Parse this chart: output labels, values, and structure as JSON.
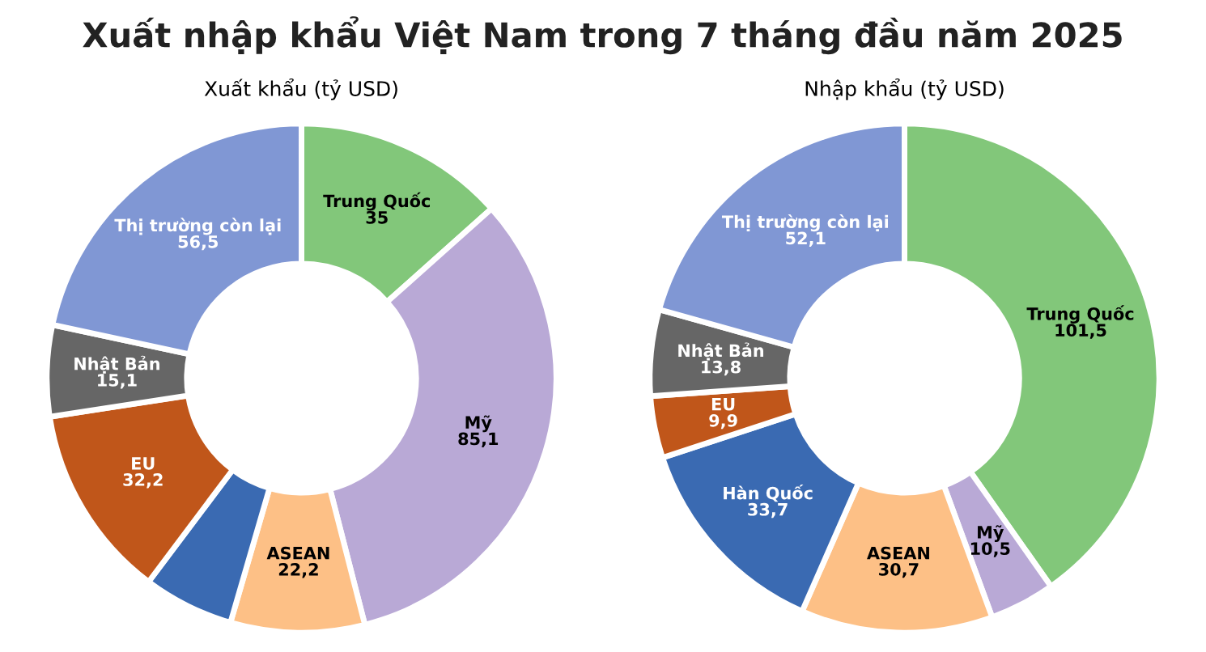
{
  "chart_data": [
    {
      "type": "donut",
      "title": "Xuất nhập khẩu Việt Nam trong 7 tháng đầu năm 2025",
      "subtitle": "Xuất khẩu (tỷ USD)",
      "categories": [
        "Trung Quốc",
        "Mỹ",
        "ASEAN",
        null,
        "EU",
        "Nhật Bản",
        "Thị trường còn lại"
      ],
      "values": [
        35,
        85.1,
        22.2,
        15,
        32.2,
        15.1,
        56.5
      ],
      "value_labels": [
        "35",
        "85,1",
        "22,2",
        null,
        "32,2",
        "15,1",
        "56,5"
      ],
      "colors": [
        "#82c77a",
        "#b9a9d6",
        "#fdc086",
        "#3a6ab2",
        "#c0561a",
        "#666666",
        "#8097d4"
      ]
    },
    {
      "type": "donut",
      "subtitle": "Nhập khẩu (tỷ USD)",
      "categories": [
        "Trung Quốc",
        "Mỹ",
        "ASEAN",
        "Hàn Quốc",
        "EU",
        "Nhật Bản",
        "Thị trường còn lại"
      ],
      "values": [
        101.5,
        10.5,
        30.7,
        33.7,
        9.9,
        13.8,
        52.1
      ],
      "value_labels": [
        "101,5",
        "10,5",
        "30,7",
        "33,7",
        "9,9",
        "13,8",
        "52,1"
      ],
      "colors": [
        "#82c77a",
        "#b9a9d6",
        "#fdc086",
        "#3a6ab2",
        "#c0561a",
        "#666666",
        "#8097d4"
      ]
    }
  ]
}
